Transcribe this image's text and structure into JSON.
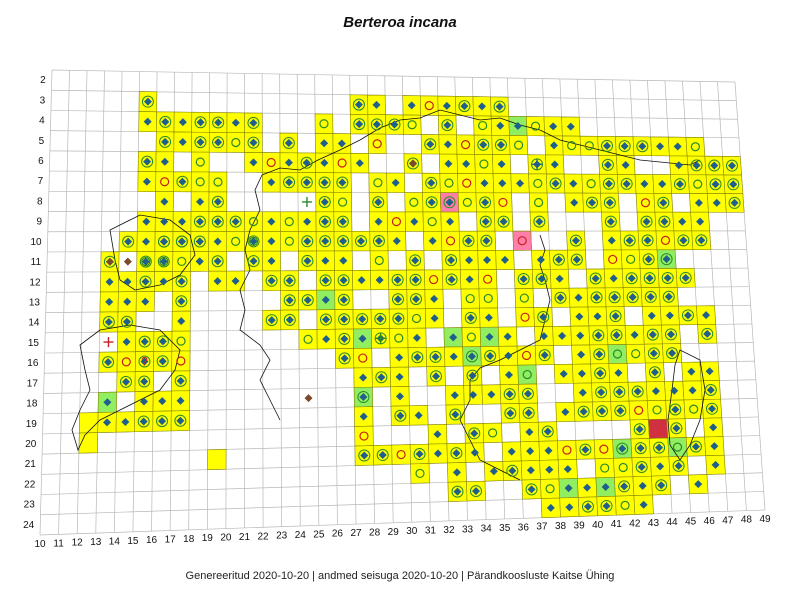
{
  "title": "Berteroa incana",
  "footer": "Genereeritud 2020-10-20  |  andmed seisuga 2020-10-20  |  Pärandkoosluste Kaitse Ühing",
  "grid": {
    "row_labels": [
      "2",
      "3",
      "4",
      "5",
      "6",
      "7",
      "8",
      "9",
      "10",
      "11",
      "12",
      "13",
      "14",
      "15",
      "16",
      "17",
      "18",
      "19",
      "20",
      "21",
      "22",
      "23",
      "24"
    ],
    "col_labels": [
      "10",
      "11",
      "12",
      "13",
      "14",
      "15",
      "16",
      "17",
      "18",
      "19",
      "20",
      "21",
      "22",
      "23",
      "24",
      "25",
      "26",
      "27",
      "28",
      "29",
      "30",
      "31",
      "32",
      "33",
      "34",
      "35",
      "36",
      "37",
      "38",
      "39",
      "40",
      "41",
      "42",
      "43",
      "44",
      "45",
      "46",
      "47",
      "48",
      "49"
    ]
  },
  "colors": {
    "grid_line": "#b8b8b8",
    "cell_fill": "#ffff00",
    "cell_border": "#8a8a00",
    "highlight_green": "#90ee60",
    "highlight_pink": "#ff7faa",
    "highlight_red": "#d03040",
    "symbol_blue": "#1f5f8b",
    "symbol_red": "#c82020",
    "symbol_brown": "#7a4a2a",
    "symbol_green": "#2a8a2a",
    "coast": "#111111"
  },
  "legend_symbols": [
    "filled-diamond-icon",
    "diamond-in-circle-icon",
    "open-circle-icon",
    "circle-cross-icon",
    "plus-icon",
    "question-mark-icon"
  ]
}
